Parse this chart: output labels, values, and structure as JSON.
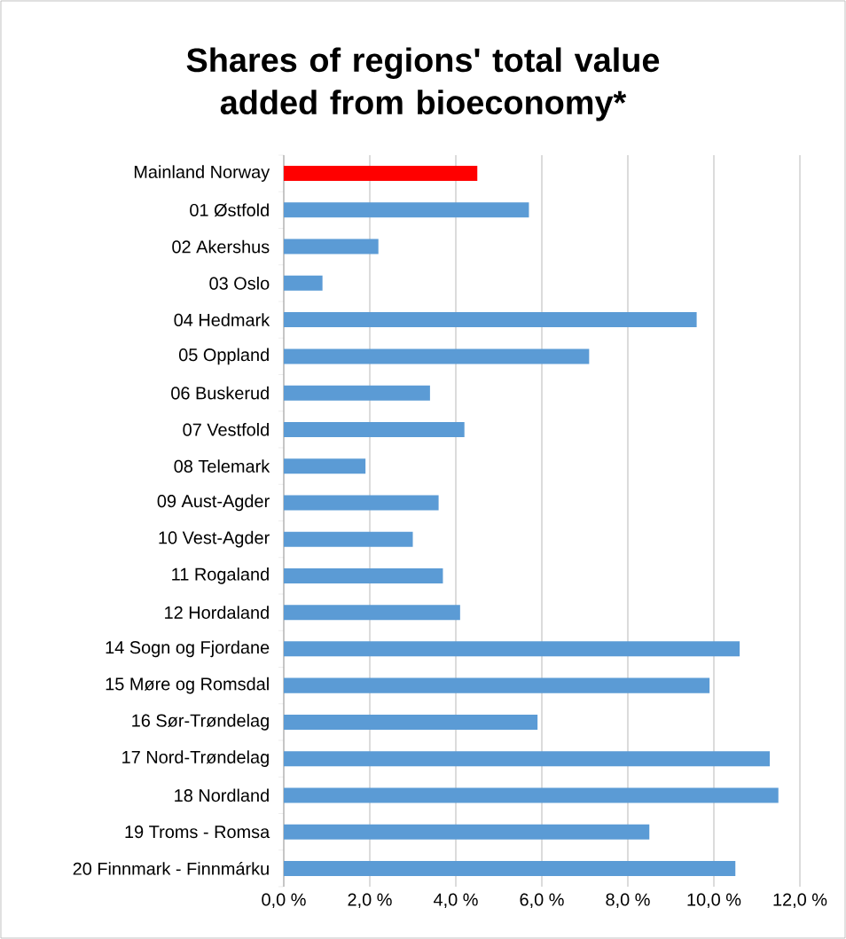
{
  "chart_data": {
    "type": "bar",
    "orientation": "horizontal",
    "title": "Shares of regions' total value added from bioeconomy*",
    "categories": [
      "Mainland Norway",
      "01 Østfold",
      "02 Akershus",
      "03 Oslo",
      "04 Hedmark",
      "05 Oppland",
      "06 Buskerud",
      "07 Vestfold",
      "08 Telemark",
      "09 Aust-Agder",
      "10 Vest-Agder",
      "11 Rogaland",
      "12 Hordaland",
      "14 Sogn og Fjordane",
      "15 Møre og Romsdal",
      "16 Sør-Trøndelag",
      "17 Nord-Trøndelag",
      "18 Nordland",
      "19 Troms - Romsa",
      "20 Finnmark - Finnmárku"
    ],
    "values": [
      4.5,
      5.7,
      2.2,
      0.9,
      9.6,
      7.1,
      3.4,
      4.2,
      1.9,
      3.6,
      3.0,
      3.7,
      4.1,
      10.6,
      9.9,
      5.9,
      11.3,
      11.5,
      8.5,
      10.5
    ],
    "colors": [
      "#ff0000",
      "#5b9bd5",
      "#5b9bd5",
      "#5b9bd5",
      "#5b9bd5",
      "#5b9bd5",
      "#5b9bd5",
      "#5b9bd5",
      "#5b9bd5",
      "#5b9bd5",
      "#5b9bd5",
      "#5b9bd5",
      "#5b9bd5",
      "#5b9bd5",
      "#5b9bd5",
      "#5b9bd5",
      "#5b9bd5",
      "#5b9bd5",
      "#5b9bd5",
      "#5b9bd5"
    ],
    "xlim": [
      0,
      12
    ],
    "xticks": [
      {
        "value": 0,
        "label": "0,0 %"
      },
      {
        "value": 2,
        "label": "2,0 %"
      },
      {
        "value": 4,
        "label": "4,0 %"
      },
      {
        "value": 6,
        "label": "6,0 %"
      },
      {
        "value": 8,
        "label": "8,0 %"
      },
      {
        "value": 10,
        "label": "10,0 %"
      },
      {
        "value": 12,
        "label": "12,0 %"
      }
    ],
    "grid": "x"
  }
}
